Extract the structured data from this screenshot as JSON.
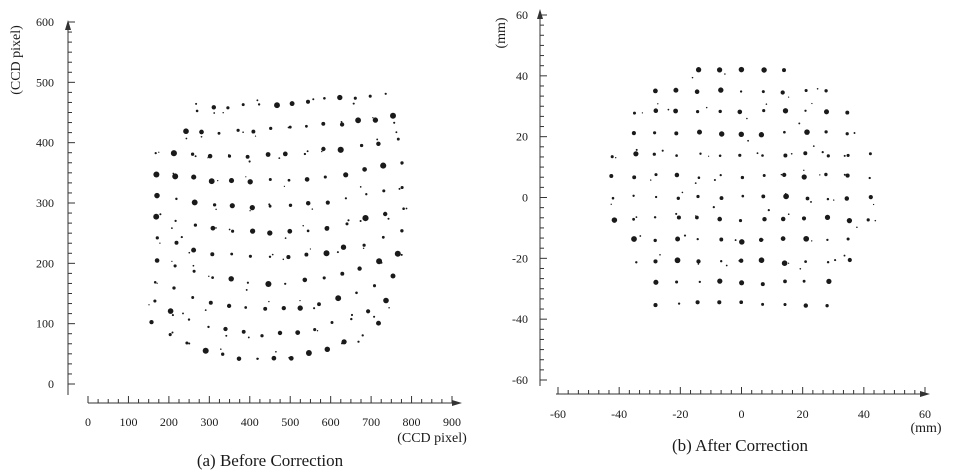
{
  "chart_data": [
    {
      "type": "scatter",
      "caption": "(a) Before Correction",
      "xlabel": "(CCD pixel)",
      "ylabel": "(CCD pixel)",
      "xlim": [
        0,
        900
      ],
      "ylim": [
        0,
        600
      ],
      "xticks": [
        "0",
        "100",
        "200",
        "300",
        "400",
        "500",
        "600",
        "700",
        "800",
        "900"
      ],
      "yticks": [
        "0",
        "100",
        "200",
        "300",
        "400",
        "500",
        "600"
      ],
      "grid": false,
      "legend": "none",
      "dot_color": "#1a1a1a",
      "grid_points": {
        "description": "distorted calibration dot grid (pincushion/keystone): rows of dots",
        "top_row": {
          "x": [
            240,
            290,
            340,
            390,
            440,
            490,
            540,
            590,
            640,
            690
          ],
          "y": [
            455,
            452,
            452,
            453,
            455,
            458,
            462,
            467,
            472,
            480
          ]
        },
        "x_range": [
          160,
          780
        ],
        "y_range": [
          30,
          485
        ],
        "row_spacing_approx": 40,
        "col_spacing_approx": 45
      }
    },
    {
      "type": "scatter",
      "caption": "(b) After Correction",
      "xlabel": "(mm)",
      "ylabel": "(mm)",
      "xlim": [
        -60,
        60
      ],
      "ylim": [
        -60,
        60
      ],
      "xticks": [
        "-60",
        "-40",
        "-20",
        "0",
        "20",
        "40",
        "60"
      ],
      "yticks": [
        "-60",
        "-40",
        "-20",
        "0",
        "20",
        "40",
        "60"
      ],
      "grid": false,
      "legend": "none",
      "dot_color": "#1a1a1a",
      "grid_points": {
        "description": "rectified square grid of dots inside a roughly circular aperture",
        "x_spacing": 7,
        "y_spacing": 7,
        "x_range": [
          -42,
          42
        ],
        "y_range": [
          -35,
          42
        ]
      }
    }
  ]
}
